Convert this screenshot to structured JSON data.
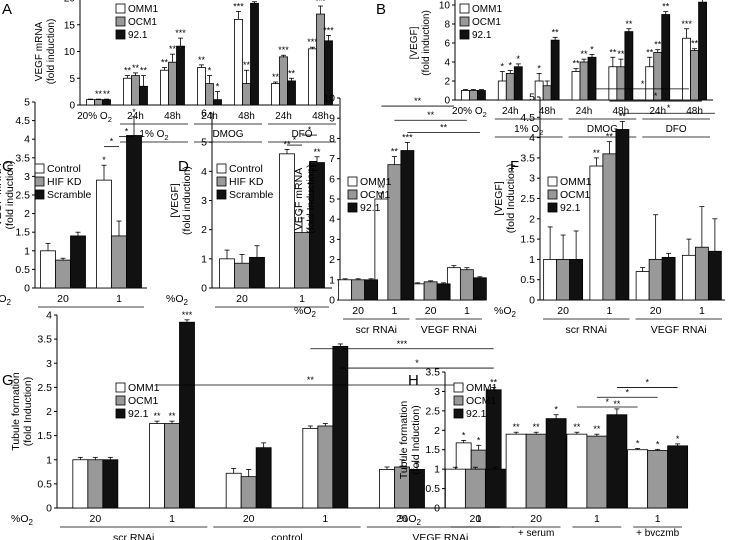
{
  "colors": {
    "white": "#ffffff",
    "gray": "#999999",
    "black": "#111111",
    "axis": "#000000"
  },
  "chart_data": [
    {
      "type": "bar",
      "panel": "A",
      "ylabel": "VEGF mRNA\n(fold induction)",
      "ylim": [
        0,
        20
      ],
      "yticks": [
        0,
        5,
        10,
        15,
        20
      ],
      "legend": [
        "OMM1",
        "OCM1",
        "92.1"
      ],
      "categories": [
        "20% O2",
        "24h",
        "48h",
        "24h",
        "48h",
        "24h",
        "48h"
      ],
      "groups": [
        {
          "label": "1% O2",
          "cats": [
            1,
            2
          ]
        },
        {
          "label": "DMOG",
          "cats": [
            3,
            4
          ]
        },
        {
          "label": "DFO",
          "cats": [
            5,
            6
          ]
        }
      ],
      "series": [
        {
          "name": "OMM1",
          "values": [
            1,
            5,
            6.5,
            7,
            16,
            4,
            10.5
          ],
          "errors": [
            0.1,
            0.5,
            0.5,
            0.5,
            1.5,
            0.3,
            0.3
          ]
        },
        {
          "name": "OCM1",
          "values": [
            1,
            5.5,
            8,
            4,
            4,
            9,
            17
          ],
          "errors": [
            0.1,
            0.5,
            1.5,
            1.5,
            2.5,
            0.3,
            1.5
          ]
        },
        {
          "name": "92.1",
          "values": [
            1,
            3.5,
            11,
            1,
            19,
            4.5,
            12
          ],
          "errors": [
            0.1,
            2,
            1.5,
            1.5,
            0.3,
            0.5,
            1
          ]
        }
      ],
      "sig": [
        [
          "",
          "**",
          "**"
        ],
        [
          "**",
          "**",
          "**"
        ],
        [
          "**",
          "**",
          "***"
        ],
        [
          "**",
          "*",
          "*"
        ],
        [
          "***",
          "**",
          "***"
        ],
        [
          "**",
          "***",
          "**"
        ],
        [
          "***",
          "***",
          "***"
        ]
      ]
    },
    {
      "type": "bar",
      "panel": "B",
      "ylabel": "[VEGF]\n(fold induction)",
      "ylim": [
        0,
        12
      ],
      "yticks": [
        0,
        2,
        4,
        6,
        8,
        10,
        12
      ],
      "legend": [
        "OMM1",
        "OCM1",
        "92.1"
      ],
      "categories": [
        "20% O2",
        "24h",
        "48h",
        "24h",
        "48h",
        "24h",
        "48h"
      ],
      "groups": [
        {
          "label": "1% O2",
          "cats": [
            1,
            2
          ]
        },
        {
          "label": "DMOG",
          "cats": [
            3,
            4
          ]
        },
        {
          "label": "DFO",
          "cats": [
            5,
            6
          ]
        }
      ],
      "series": [
        {
          "name": "OMM1",
          "values": [
            1,
            2,
            2,
            3,
            3.5,
            3.5,
            6.5
          ],
          "errors": [
            0.1,
            1,
            0.8,
            0.3,
            1,
            1,
            1
          ]
        },
        {
          "name": "OCM1",
          "values": [
            1,
            2.8,
            1.5,
            4,
            3.5,
            5,
            5.2
          ],
          "errors": [
            0.1,
            0.3,
            0.5,
            0.3,
            0.8,
            0.3,
            0.2
          ]
        },
        {
          "name": "92.1",
          "values": [
            1,
            3.5,
            6.3,
            4.5,
            7.2,
            9,
            10.3
          ],
          "errors": [
            0.1,
            0.3,
            0.3,
            0.3,
            0.3,
            0.3,
            0.5
          ]
        }
      ],
      "sig": [
        [
          "",
          "",
          ""
        ],
        [
          "*",
          "*",
          "*"
        ],
        [
          "*",
          "",
          "**"
        ],
        [
          "**",
          "**",
          "*"
        ],
        [
          "**",
          "**",
          "**"
        ],
        [
          "**",
          "**",
          "**"
        ],
        [
          "***",
          "**",
          "***"
        ]
      ]
    },
    {
      "type": "bar",
      "panel": "C",
      "ylabel": "VEGF mRNA\n(fold induction)",
      "ylim": [
        0,
        5
      ],
      "yticks": [
        0,
        0.5,
        1,
        1.5,
        2,
        2.5,
        3,
        3.5,
        4,
        4.5,
        5
      ],
      "legend": [
        "Control",
        "HIF KD",
        "Scramble"
      ],
      "xprefix": "%O2",
      "categories": [
        "20",
        "1"
      ],
      "series": [
        {
          "name": "Control",
          "values": [
            1,
            2.9
          ],
          "errors": [
            0.2,
            0.4
          ]
        },
        {
          "name": "HIF KD",
          "values": [
            0.75,
            1.4
          ],
          "errors": [
            0.05,
            0.4
          ]
        },
        {
          "name": "Scramble",
          "values": [
            1.4,
            4.1
          ],
          "errors": [
            0.1,
            0.5
          ]
        }
      ],
      "sig": [
        [
          "",
          "",
          ""
        ],
        [
          "*",
          "",
          "*"
        ]
      ],
      "brackets": [
        {
          "from": [
            1,
            0
          ],
          "to": [
            1,
            1
          ],
          "label": "*"
        },
        {
          "from": [
            1,
            1
          ],
          "to": [
            1,
            2
          ],
          "label": "*"
        }
      ]
    },
    {
      "type": "bar",
      "panel": "D",
      "ylabel": "[VEGF]\n(fold induction)",
      "ylim": [
        0,
        6
      ],
      "yticks": [
        0,
        1,
        2,
        3,
        4,
        5,
        6
      ],
      "legend": [
        "Control",
        "HIF KD",
        "Scramble"
      ],
      "xprefix": "%O2",
      "categories": [
        "20",
        "1"
      ],
      "series": [
        {
          "name": "Control",
          "values": [
            1,
            4.6
          ],
          "errors": [
            0.3,
            0.15
          ]
        },
        {
          "name": "HIF KD",
          "values": [
            0.85,
            1.9
          ],
          "errors": [
            0.3,
            0.5
          ]
        },
        {
          "name": "Scramble",
          "values": [
            1.05,
            4.3
          ],
          "errors": [
            0.4,
            0.2
          ]
        }
      ],
      "sig": [
        [
          "",
          "",
          ""
        ],
        [
          "**",
          "*",
          "**"
        ]
      ],
      "brackets": [
        {
          "from": [
            1,
            0
          ],
          "to": [
            1,
            1
          ],
          "label": "*"
        },
        {
          "from": [
            1,
            1
          ],
          "to": [
            1,
            2
          ],
          "label": "*"
        }
      ]
    },
    {
      "type": "bar",
      "panel": "E",
      "ylabel": "VEGF mRNA\n(fold Induction)",
      "ylim": [
        0,
        10
      ],
      "yticks": [
        0,
        1,
        2,
        3,
        4,
        5,
        6,
        7,
        8,
        9,
        10
      ],
      "legend": [
        "OMM1",
        "OCM1",
        "92.1"
      ],
      "xprefix": "%O2",
      "categories": [
        "20",
        "1",
        "20",
        "1"
      ],
      "groups": [
        {
          "label": "scr RNAi",
          "cats": [
            0,
            1
          ]
        },
        {
          "label": "VEGF RNAi",
          "cats": [
            2,
            3
          ]
        }
      ],
      "series": [
        {
          "name": "OMM1",
          "values": [
            1,
            5,
            0.8,
            1.6
          ],
          "errors": [
            0.05,
            0.3,
            0.05,
            0.1
          ]
        },
        {
          "name": "OCM1",
          "values": [
            1,
            6.7,
            0.9,
            1.5
          ],
          "errors": [
            0.05,
            0.4,
            0.05,
            0.1
          ]
        },
        {
          "name": "92.1",
          "values": [
            1,
            7.4,
            0.8,
            1.1
          ],
          "errors": [
            0.05,
            0.4,
            0.05,
            0.05
          ]
        }
      ],
      "sig": [
        [
          "",
          "",
          ""
        ],
        [
          "**",
          "**",
          "***"
        ],
        [
          "",
          "",
          ""
        ],
        [
          "",
          "",
          ""
        ]
      ],
      "brackets": [
        {
          "from": [
            1,
            0
          ],
          "to": [
            3,
            0
          ],
          "label": "**"
        },
        {
          "from": [
            1,
            1
          ],
          "to": [
            3,
            1
          ],
          "label": "**"
        },
        {
          "from": [
            1,
            2
          ],
          "to": [
            3,
            2
          ],
          "label": "**"
        }
      ]
    },
    {
      "type": "bar",
      "panel": "F",
      "ylabel": "[VEGF]\n(fold Induction)",
      "ylim": [
        0,
        5
      ],
      "yticks": [
        0,
        0.5,
        1,
        1.5,
        2,
        2.5,
        3,
        3.5,
        4,
        4.5,
        5
      ],
      "legend": [
        "OMM1",
        "OCM1",
        "92.1"
      ],
      "xprefix": "%O2",
      "categories": [
        "20",
        "1",
        "20",
        "1"
      ],
      "groups": [
        {
          "label": "scr RNAi",
          "cats": [
            0,
            1
          ]
        },
        {
          "label": "VEGF RNAi",
          "cats": [
            2,
            3
          ]
        }
      ],
      "series": [
        {
          "name": "OMM1",
          "values": [
            1,
            3.3,
            0.7,
            1.1
          ],
          "errors": [
            0.8,
            0.2,
            0.1,
            0.4
          ]
        },
        {
          "name": "OCM1",
          "values": [
            1,
            3.6,
            1,
            1.3
          ],
          "errors": [
            0.6,
            0.3,
            1.1,
            1
          ]
        },
        {
          "name": "92.1",
          "values": [
            1,
            4.2,
            1.05,
            1.2
          ],
          "errors": [
            0.7,
            0.2,
            0.1,
            0.8
          ]
        }
      ],
      "sig": [
        [
          "",
          "",
          ""
        ],
        [
          "**",
          "**",
          "**"
        ],
        [
          "",
          "",
          ""
        ],
        [
          "",
          "",
          ""
        ]
      ],
      "brackets": [
        {
          "from": [
            1,
            0
          ],
          "to": [
            3,
            0
          ],
          "label": "*"
        },
        {
          "from": [
            1,
            1
          ],
          "to": [
            3,
            1
          ],
          "label": "*"
        },
        {
          "from": [
            1,
            2
          ],
          "to": [
            3,
            2
          ],
          "label": "*"
        }
      ]
    },
    {
      "type": "bar",
      "panel": "G",
      "ylabel": "Tubule formation\n(fold Induction)",
      "ylim": [
        0,
        4
      ],
      "yticks": [
        0,
        0.5,
        1,
        1.5,
        2,
        2.5,
        3,
        3.5,
        4
      ],
      "legend": [
        "OMM1",
        "OCM1",
        "92.1"
      ],
      "xprefix": "%O2",
      "categories": [
        "20",
        "1",
        "20",
        "1",
        "20",
        "1"
      ],
      "groups": [
        {
          "label": "scr RNAi",
          "cats": [
            0,
            1
          ]
        },
        {
          "label": "control",
          "cats": [
            2,
            3
          ]
        },
        {
          "label": "VEGF RNAi",
          "cats": [
            4,
            5
          ]
        }
      ],
      "series": [
        {
          "name": "OMM1",
          "values": [
            1,
            1.75,
            0.72,
            1.65,
            0.8,
            1.35
          ],
          "errors": [
            0.05,
            0.05,
            0.1,
            0.05,
            0.05,
            0.05
          ]
        },
        {
          "name": "OCM1",
          "values": [
            1,
            1.75,
            0.65,
            1.7,
            0.85,
            1.2
          ],
          "errors": [
            0.05,
            0.05,
            0.15,
            0.05,
            0.15,
            0.1
          ]
        },
        {
          "name": "92.1",
          "values": [
            1,
            3.85,
            1.25,
            3.35,
            0.8,
            2.45
          ],
          "errors": [
            0.05,
            0.05,
            0.1,
            0.05,
            0.15,
            0.05
          ]
        }
      ],
      "sig": [
        [
          "",
          "",
          ""
        ],
        [
          "**",
          "**",
          "***"
        ],
        [
          "",
          "",
          ""
        ],
        [
          "",
          "",
          ""
        ],
        [
          "",
          "",
          ""
        ],
        [
          "*",
          "*",
          "**"
        ]
      ],
      "brackets": [
        {
          "from": [
            1,
            0
          ],
          "to": [
            5,
            0
          ],
          "label": "**"
        },
        {
          "from": [
            3,
            2
          ],
          "to": [
            5,
            2
          ],
          "label": "*"
        },
        {
          "from": [
            3,
            0
          ],
          "to": [
            5,
            2
          ],
          "label": "***"
        }
      ]
    },
    {
      "type": "bar",
      "panel": "H",
      "ylabel": "Tubule formation\n(fold Induction)",
      "ylim": [
        0,
        3.5
      ],
      "yticks": [
        0,
        0.5,
        1,
        1.5,
        2,
        2.5,
        3,
        3.5
      ],
      "legend": [
        "OMM1",
        "OCM1",
        "92.1"
      ],
      "xprefix": "%O2",
      "categories": [
        "20",
        "20",
        "1",
        "1"
      ],
      "sublabels": [
        "",
        "+ serum",
        "",
        "+ bvczmb"
      ],
      "series": [
        {
          "name": "OMM1",
          "values": [
            1,
            1.9,
            1.9,
            1.5
          ],
          "errors": [
            0.05,
            0.05,
            0.05,
            0.03
          ]
        },
        {
          "name": "OCM1",
          "values": [
            1,
            1.9,
            1.85,
            1.48
          ],
          "errors": [
            0.05,
            0.05,
            0.05,
            0.03
          ]
        },
        {
          "name": "92.1",
          "values": [
            1,
            2.3,
            2.4,
            1.6
          ],
          "errors": [
            0.05,
            0.1,
            0.15,
            0.05
          ]
        }
      ],
      "sig": [
        [
          "",
          "",
          ""
        ],
        [
          "**",
          "**",
          "*"
        ],
        [
          "**",
          "**",
          "**"
        ],
        [
          "*",
          "*",
          "*"
        ]
      ],
      "brackets": [
        {
          "from": [
            2,
            0
          ],
          "to": [
            3,
            0
          ],
          "label": "*"
        },
        {
          "from": [
            2,
            1
          ],
          "to": [
            3,
            1
          ],
          "label": "*"
        },
        {
          "from": [
            2,
            2
          ],
          "to": [
            3,
            2
          ],
          "label": "*"
        }
      ]
    }
  ]
}
